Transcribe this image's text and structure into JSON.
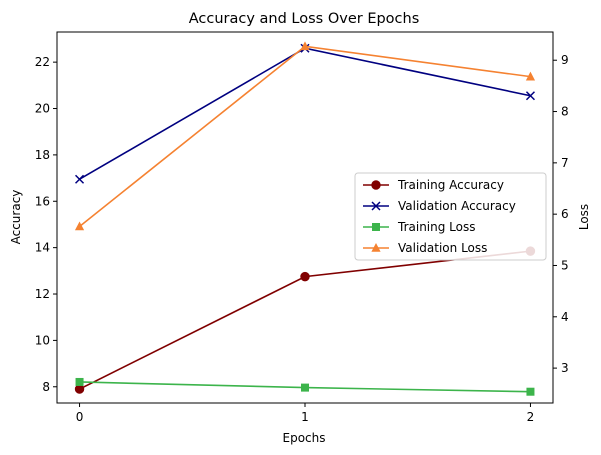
{
  "chart_data": {
    "type": "line",
    "title": "Accuracy and Loss Over Epochs",
    "xlabel": "Epochs",
    "ylabel_left": "Accuracy",
    "ylabel_right": "Loss",
    "x": [
      0,
      1,
      2
    ],
    "x_ticks": [
      "0",
      "1",
      "2"
    ],
    "ylim_left": [
      7.3,
      23.3
    ],
    "ylim_right": [
      2.32,
      9.55
    ],
    "yticks_left": [
      8,
      10,
      12,
      14,
      16,
      18,
      20,
      22
    ],
    "yticks_right": [
      3,
      4,
      5,
      6,
      7,
      8,
      9
    ],
    "grid": false,
    "legend_position": "center-right",
    "series": [
      {
        "name": "Training Accuracy",
        "axis": "left",
        "values": [
          7.9,
          12.75,
          13.85
        ],
        "color": "#800000",
        "marker": "circle"
      },
      {
        "name": "Validation Accuracy",
        "axis": "left",
        "values": [
          16.95,
          22.6,
          20.55
        ],
        "color": "#000080",
        "marker": "x"
      },
      {
        "name": "Training Loss",
        "axis": "right",
        "values": [
          2.73,
          2.62,
          2.54
        ],
        "color": "#3cb44b",
        "marker": "square"
      },
      {
        "name": "Validation Loss",
        "axis": "right",
        "values": [
          5.76,
          9.27,
          8.68
        ],
        "color": "#f58231",
        "marker": "triangle"
      }
    ]
  }
}
